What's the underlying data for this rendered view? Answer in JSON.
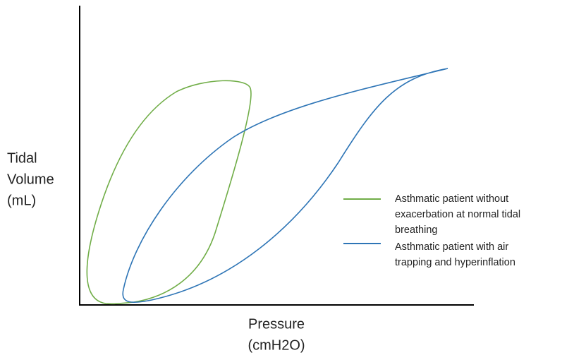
{
  "y_axis": {
    "label_lines": [
      "Tidal",
      "Volume",
      "(mL)"
    ]
  },
  "x_axis": {
    "label_lines": [
      "Pressure",
      "(cmH2O)"
    ]
  },
  "legend": [
    {
      "label_lines": [
        "Asthmatic patient without",
        "exacerbation at normal tidal",
        "breathing"
      ],
      "color": "#70ad47"
    },
    {
      "label_lines": [
        "Asthmatic patient with air",
        "trapping and hyperinflation"
      ],
      "color": "#2e75b6"
    }
  ]
}
